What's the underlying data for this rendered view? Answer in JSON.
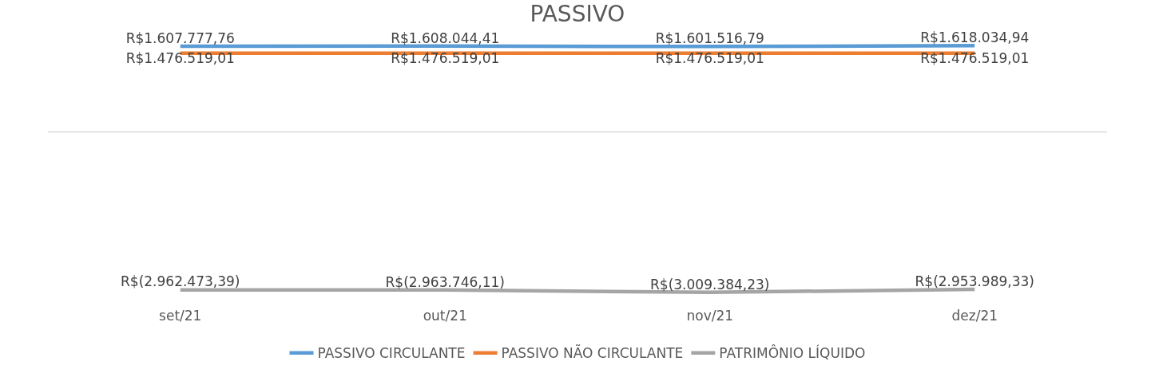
{
  "chart_data": {
    "type": "line",
    "title": "PASSIVO",
    "categories": [
      "set/21",
      "out/21",
      "nov/21",
      "dez/21"
    ],
    "series": [
      {
        "name": "PASSIVO CIRCULANTE",
        "color": "#5b9bd5",
        "values": [
          1607777.76,
          1608044.41,
          1601516.79,
          1618034.94
        ],
        "value_labels": [
          "R$1.607.777,76",
          "R$1.608.044,41",
          "R$1.601.516,79",
          "R$1.618.034,94"
        ]
      },
      {
        "name": "PASSIVO NÃO CIRCULANTE",
        "color": "#ed7d31",
        "values": [
          1476519.01,
          1476519.01,
          1476519.01,
          1476519.01
        ],
        "value_labels": [
          "R$1.476.519,01",
          "R$1.476.519,01",
          "R$1.476.519,01",
          "R$1.476.519,01"
        ]
      },
      {
        "name": "PATRIMÔNIO LÍQUIDO",
        "color": "#a5a5a5",
        "values": [
          -2962473.39,
          -2963746.11,
          -3009384.23,
          -2953989.33
        ],
        "value_labels": [
          "R$(2.962.473,39)",
          "R$(2.963.746,11)",
          "R$(3.009.384,23)",
          "R$(2.953.989,33)"
        ]
      }
    ],
    "ref_lines": [
      {
        "axis": "y",
        "value": 0,
        "color": "#d9d9d9"
      }
    ],
    "legend": "bottom",
    "marker": "none",
    "line_style": "solid"
  }
}
